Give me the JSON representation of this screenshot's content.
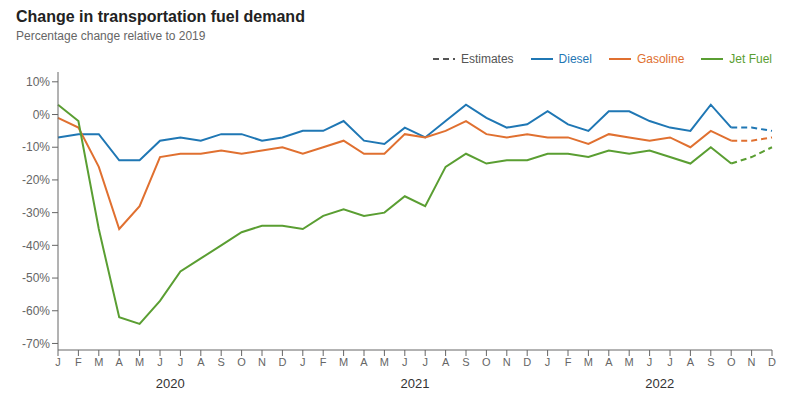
{
  "chart_data": {
    "type": "line",
    "title": "Change in transportation fuel demand",
    "subtitle": "Percentage change relative to 2019",
    "categories": [
      "J",
      "F",
      "M",
      "A",
      "M",
      "J",
      "J",
      "A",
      "S",
      "O",
      "N",
      "D",
      "J",
      "F",
      "M",
      "A",
      "M",
      "J",
      "J",
      "A",
      "S",
      "O",
      "N",
      "D",
      "J",
      "F",
      "M",
      "A",
      "M",
      "J",
      "J",
      "A",
      "S",
      "O",
      "N",
      "D"
    ],
    "series": [
      {
        "name": "Diesel",
        "color": "#1f77b4",
        "line_style": "solid",
        "values": [
          -0.07,
          -0.06,
          -0.06,
          -0.14,
          -0.14,
          -0.08,
          -0.07,
          -0.08,
          -0.06,
          -0.06,
          -0.08,
          -0.07,
          -0.05,
          -0.05,
          -0.02,
          -0.08,
          -0.09,
          -0.04,
          -0.07,
          -0.02,
          0.03,
          -0.01,
          -0.04,
          -0.03,
          0.01,
          -0.03,
          -0.05,
          0.01,
          0.01,
          -0.02,
          -0.04,
          -0.05,
          0.03,
          -0.04,
          -0.04,
          -0.05
        ]
      },
      {
        "name": "Gasoline",
        "color": "#e07030",
        "line_style": "solid",
        "values": [
          -0.01,
          -0.04,
          -0.16,
          -0.35,
          -0.28,
          -0.13,
          -0.12,
          -0.12,
          -0.11,
          -0.12,
          -0.11,
          -0.1,
          -0.12,
          -0.1,
          -0.08,
          -0.12,
          -0.12,
          -0.06,
          -0.07,
          -0.05,
          -0.02,
          -0.06,
          -0.07,
          -0.06,
          -0.07,
          -0.07,
          -0.09,
          -0.06,
          -0.07,
          -0.08,
          -0.07,
          -0.1,
          -0.05,
          -0.08,
          -0.08,
          -0.07
        ]
      },
      {
        "name": "Jet Fuel",
        "color": "#5a9e32",
        "line_style": "solid",
        "values": [
          0.03,
          -0.02,
          -0.35,
          -0.62,
          -0.64,
          -0.57,
          -0.48,
          -0.44,
          -0.4,
          -0.36,
          -0.34,
          -0.34,
          -0.35,
          -0.31,
          -0.29,
          -0.31,
          -0.3,
          -0.25,
          -0.28,
          -0.16,
          -0.12,
          -0.15,
          -0.14,
          -0.14,
          -0.12,
          -0.12,
          -0.13,
          -0.11,
          -0.12,
          -0.11,
          -0.13,
          -0.15,
          -0.1,
          -0.15,
          -0.13,
          -0.1
        ]
      }
    ],
    "estimates": {
      "label": "Estimates",
      "start": 33,
      "line_style": "dashed"
    },
    "annotations": [
      {
        "text": "2020"
      },
      {
        "text": "2021"
      },
      {
        "text": "2022"
      }
    ],
    "ylim": [
      -0.72,
      0.13
    ],
    "yticks": [
      {
        "value": 0.1,
        "label": "10%"
      },
      {
        "value": 0.0,
        "label": "0%"
      },
      {
        "value": -0.1,
        "label": "-10%"
      },
      {
        "value": -0.2,
        "label": "-20%"
      },
      {
        "value": -0.3,
        "label": "-30%"
      },
      {
        "value": -0.4,
        "label": "-40%"
      },
      {
        "value": -0.5,
        "label": "-50%"
      },
      {
        "value": -0.6,
        "label": "-60%"
      },
      {
        "value": -0.7,
        "label": "-70%"
      }
    ],
    "grid": false,
    "legend": "upper right"
  }
}
